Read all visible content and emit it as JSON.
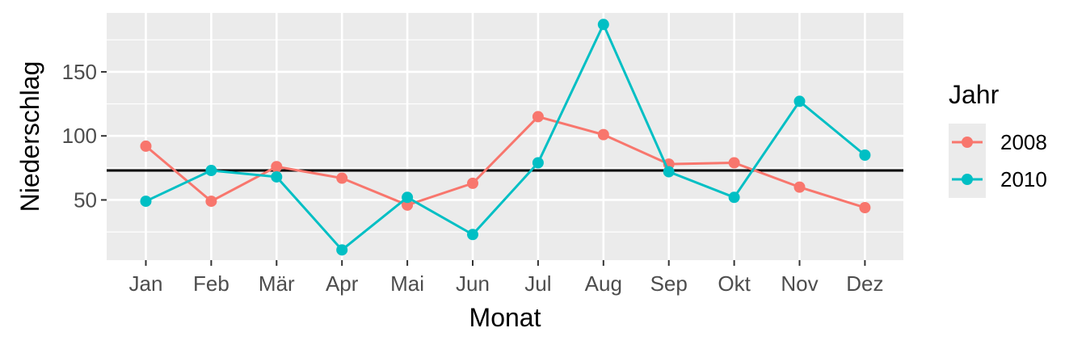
{
  "chart_data": {
    "type": "line",
    "xlabel": "Monat",
    "ylabel": "Niederschlag",
    "categories": [
      "Jan",
      "Feb",
      "Mär",
      "Apr",
      "Mai",
      "Jun",
      "Jul",
      "Aug",
      "Sep",
      "Okt",
      "Nov",
      "Dez"
    ],
    "y_ticks": [
      50,
      100,
      150
    ],
    "ylim": [
      3,
      196
    ],
    "grid": true,
    "reference_line": 73,
    "legend": {
      "title": "Jahr",
      "placement": "right"
    },
    "series": [
      {
        "name": "2008",
        "color": "#F8766D",
        "values": [
          92,
          49,
          76,
          67,
          46,
          63,
          115,
          101,
          78,
          79,
          60,
          44
        ]
      },
      {
        "name": "2010",
        "color": "#00BFC4",
        "values": [
          49,
          73,
          68,
          11,
          52,
          23,
          79,
          187,
          72,
          52,
          127,
          85
        ]
      }
    ]
  }
}
